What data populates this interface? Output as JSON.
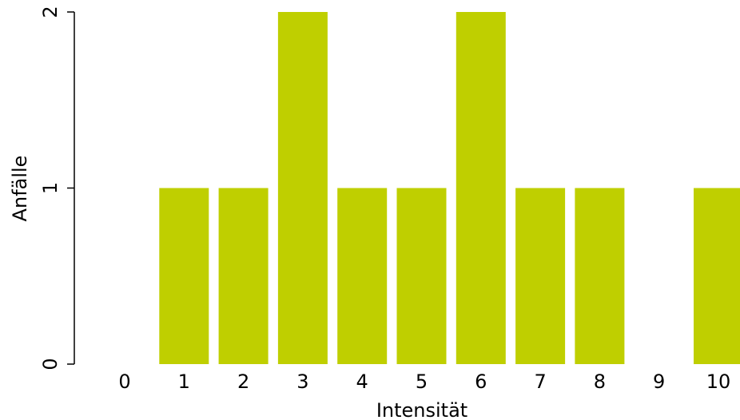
{
  "chart_data": {
    "type": "bar",
    "categories": [
      "0",
      "1",
      "2",
      "3",
      "4",
      "5",
      "6",
      "7",
      "8",
      "9",
      "10"
    ],
    "values": [
      0,
      1,
      1,
      2,
      1,
      1,
      2,
      1,
      1,
      0,
      1
    ],
    "xlabel": "Intensität",
    "ylabel": "Anfälle",
    "ylim": [
      0,
      2
    ],
    "yticks": [
      "0",
      "1",
      "2"
    ],
    "bar_color": "#bfcf00",
    "grid": false,
    "legend": "none"
  }
}
